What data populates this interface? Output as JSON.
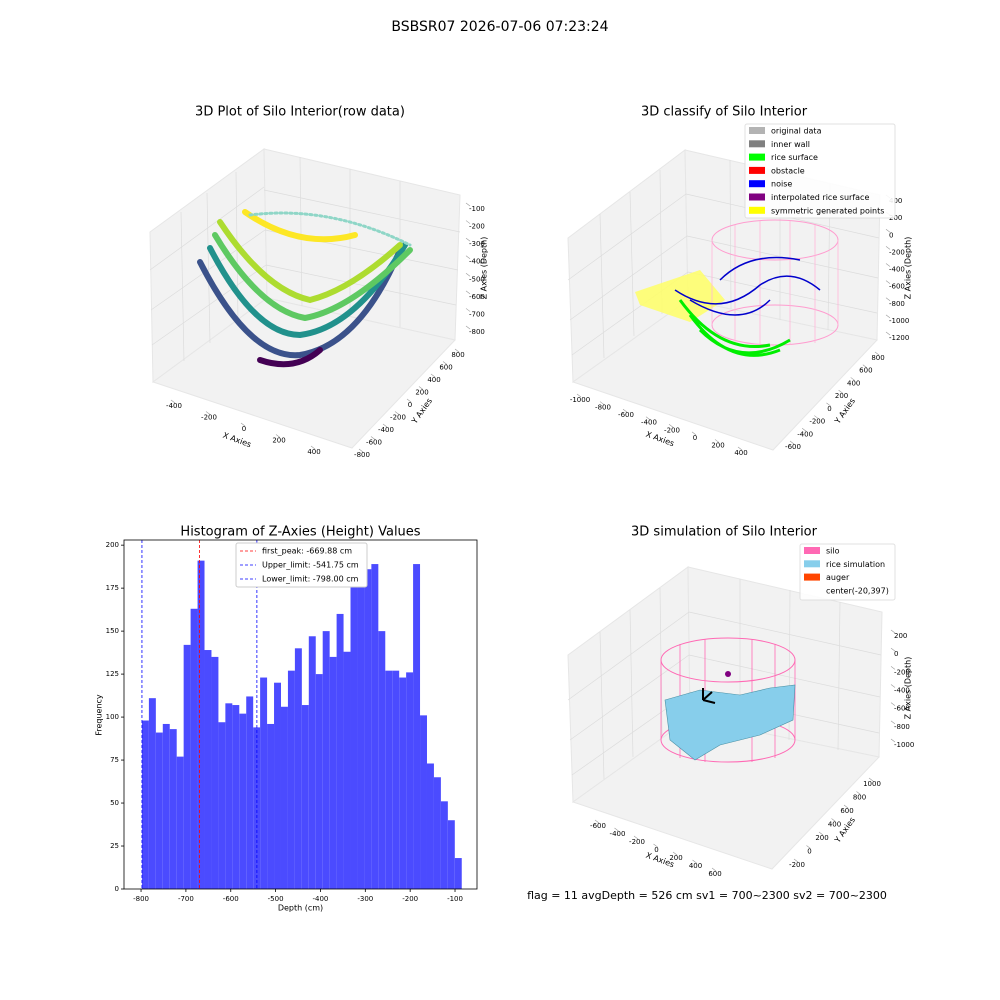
{
  "title": "BSBSR07 2026-07-06 07:23:24",
  "footer": "flag = 11  avgDepth = 526 cm  sv1 = 700~2300  sv2 = 700~2300",
  "chart_data": [
    {
      "type": "scatter3d",
      "title": "3D Plot of Silo Interior(row data)",
      "xlabel": "X Axies",
      "ylabel": "Y Axies",
      "zlabel": "Z Axies (Depth)",
      "xticks": [
        -400,
        -200,
        0,
        200,
        400
      ],
      "yticks": [
        -800,
        -600,
        -400,
        -200,
        0,
        200,
        400,
        600,
        800
      ],
      "zticks": [
        -800,
        -700,
        -600,
        -500,
        -400,
        -300,
        -200,
        -100
      ]
    },
    {
      "type": "scatter3d",
      "title": "3D classify of Silo Interior",
      "xlabel": "X Axies",
      "ylabel": "Y Axies",
      "zlabel": "Z Axies (Depth)",
      "xticks": [
        -1000,
        -800,
        -600,
        -400,
        -200,
        0,
        200,
        400
      ],
      "yticks": [
        -600,
        -400,
        -200,
        0,
        200,
        400,
        600,
        800
      ],
      "zticks": [
        -1200,
        -1000,
        -800,
        -600,
        -400,
        -200,
        0,
        200,
        400
      ],
      "series": [
        {
          "name": "original data",
          "color": "#b3b3b3"
        },
        {
          "name": "inner wall",
          "color": "#808080"
        },
        {
          "name": "rice surface",
          "color": "#00ff00"
        },
        {
          "name": "obstacle",
          "color": "#ff0000"
        },
        {
          "name": "noise",
          "color": "#0000ff"
        },
        {
          "name": "interpolated rice surface",
          "color": "#800080"
        },
        {
          "name": "symmetric generated points",
          "color": "#ffff00"
        }
      ]
    },
    {
      "type": "histogram",
      "title": "Histogram of Z-Axies (Height) Values",
      "xlabel": "Depth (cm)",
      "ylabel": "Frequency",
      "color": "#4b4bff",
      "bins": [
        -798,
        -782.5,
        -767,
        -751.5,
        -736,
        -720.5,
        -705,
        -689.5,
        -674,
        -658.5,
        -643,
        -627.5,
        -612,
        -596.5,
        -581,
        -565.5,
        -550,
        -534.5,
        -519,
        -503.5,
        -488,
        -472.5,
        -457,
        -441.5,
        -426,
        -410.5,
        -395,
        -379.5,
        -364,
        -348.5,
        -333,
        -317.5,
        -302,
        -286.5,
        -271,
        -255.5,
        -240,
        -224.5,
        -209,
        -193.5,
        -178,
        -162.5,
        -147,
        -131.5,
        -116,
        -100.5,
        -85
      ],
      "values": [
        98,
        111,
        91,
        96,
        93,
        77,
        142,
        163,
        191,
        139,
        135,
        97,
        108,
        107,
        102,
        112,
        94,
        123,
        96,
        120,
        106,
        127,
        140,
        107,
        147,
        125,
        150,
        135,
        160,
        138,
        184,
        192,
        186,
        189,
        150,
        127,
        127,
        123,
        126,
        189,
        101,
        73,
        65,
        51,
        40,
        18
      ],
      "xlim": [
        -838,
        -51
      ],
      "ylim": [
        0,
        203
      ],
      "xticks": [
        -800,
        -700,
        -600,
        -500,
        -400,
        -300,
        -200,
        -100
      ],
      "yticks": [
        0,
        25,
        50,
        75,
        100,
        125,
        150,
        175,
        200
      ],
      "vlines": [
        {
          "label": "first_peak: -669.88 cm",
          "value": -669.88,
          "color": "#ff0000"
        },
        {
          "label": "Upper_limit: -541.75 cm",
          "value": -541.75,
          "color": "#0000ff"
        },
        {
          "label": "Lower_limit: -798.00 cm",
          "value": -798,
          "color": "#0000ff"
        }
      ]
    },
    {
      "type": "surface3d",
      "title": "3D simulation of Silo Interior",
      "xlabel": "X Axies",
      "ylabel": "Y Axies",
      "zlabel": "Z Axies (Depth)",
      "xticks": [
        -600,
        -400,
        -200,
        0,
        200,
        400,
        600
      ],
      "yticks": [
        -200,
        0,
        200,
        400,
        600,
        800,
        1000
      ],
      "zticks": [
        -1000,
        -800,
        -600,
        -400,
        -200,
        0,
        200
      ],
      "series": [
        {
          "name": "silo",
          "color": "#ff69b4"
        },
        {
          "name": "rice simulation",
          "color": "#87ceeb"
        },
        {
          "name": "auger",
          "color": "#ff4500"
        },
        {
          "name": "center(-20,397)",
          "color": "#ffffff"
        }
      ]
    }
  ]
}
